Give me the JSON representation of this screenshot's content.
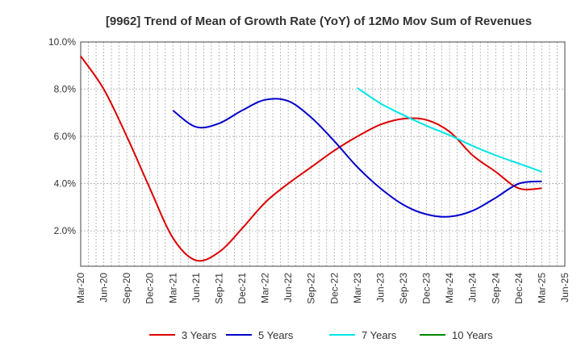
{
  "chart_data": {
    "type": "line",
    "title": "[9962]  Trend of Mean of Growth Rate (YoY) of 12Mo Mov Sum of Revenues",
    "xlabel": "",
    "ylabel": "",
    "ylim": [
      0.5,
      10.0
    ],
    "yticks": [
      2.0,
      4.0,
      6.0,
      8.0,
      10.0
    ],
    "ytick_labels": [
      "2.0%",
      "4.0%",
      "6.0%",
      "8.0%",
      "10.0%"
    ],
    "x_range": [
      0,
      63
    ],
    "x_ticks": [
      0,
      3,
      6,
      9,
      12,
      15,
      18,
      21,
      24,
      27,
      30,
      33,
      36,
      39,
      42,
      45,
      48,
      51,
      54,
      57,
      60,
      63
    ],
    "x_tick_labels": [
      "Mar-20",
      "Jun-20",
      "Sep-20",
      "Dec-20",
      "Mar-21",
      "Jun-21",
      "Sep-21",
      "Dec-21",
      "Mar-22",
      "Jun-22",
      "Sep-22",
      "Dec-22",
      "Mar-23",
      "Jun-23",
      "Sep-23",
      "Dec-23",
      "Mar-24",
      "Jun-24",
      "Sep-24",
      "Dec-24",
      "Mar-25",
      "Jun-25"
    ],
    "grid": true,
    "legend_position": "bottom",
    "series": [
      {
        "name": "3 Years",
        "color": "#dd0000",
        "x": [
          0,
          3,
          6,
          9,
          12,
          15,
          18,
          21,
          24,
          27,
          30,
          33,
          36,
          39,
          42,
          45,
          48,
          51,
          54,
          57,
          60
        ],
        "values": [
          9.4,
          8.0,
          6.0,
          3.8,
          1.7,
          0.75,
          1.1,
          2.1,
          3.2,
          4.0,
          4.7,
          5.4,
          6.0,
          6.5,
          6.75,
          6.7,
          6.2,
          5.2,
          4.5,
          3.8,
          3.8
        ]
      },
      {
        "name": "5 Years",
        "color": "#0000cc",
        "x": [
          12,
          15,
          18,
          21,
          24,
          27,
          30,
          33,
          36,
          39,
          42,
          45,
          48,
          51,
          54,
          57,
          60
        ],
        "values": [
          7.1,
          6.4,
          6.55,
          7.1,
          7.55,
          7.5,
          6.8,
          5.8,
          4.7,
          3.8,
          3.1,
          2.7,
          2.6,
          2.85,
          3.4,
          4.0,
          4.1
        ]
      },
      {
        "name": "7 Years",
        "color": "#00e5e5",
        "x": [
          36,
          39,
          42,
          45,
          48,
          51,
          54,
          57,
          60
        ],
        "values": [
          8.05,
          7.4,
          6.9,
          6.45,
          6.05,
          5.6,
          5.2,
          4.85,
          4.5
        ]
      },
      {
        "name": "10 Years",
        "color": "#008800",
        "x": [],
        "values": []
      }
    ]
  }
}
